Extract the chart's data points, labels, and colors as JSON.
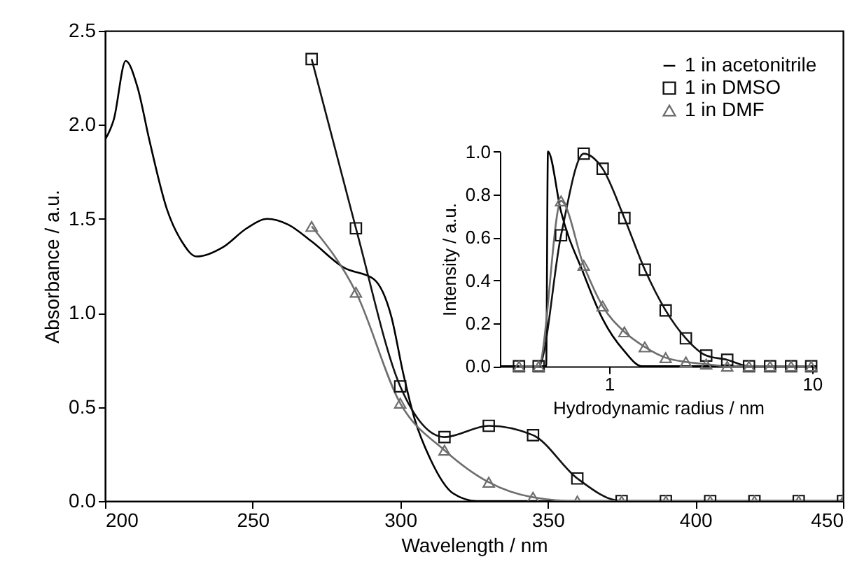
{
  "chart_data": [
    {
      "type": "line",
      "xlabel": "Wavelength / nm",
      "ylabel": "Absorbance / a.u.",
      "xlim": [
        200,
        450
      ],
      "xticks": [
        200,
        250,
        300,
        350,
        400,
        450
      ],
      "ylim": [
        0,
        2.5
      ],
      "yticks": [
        {
          "value": 0,
          "label": "0.0"
        },
        {
          "value": 0.5,
          "label": "0.5"
        },
        {
          "value": 1,
          "label": "1.0"
        },
        {
          "value": 1.5,
          "label": "1.5"
        },
        {
          "value": 2,
          "label": "2.0"
        },
        {
          "value": 2.5,
          "label": "2.5"
        }
      ],
      "legend": "top right",
      "series": [
        {
          "name": "1 in acetonitrile",
          "color": "#000000",
          "marker": "none",
          "x": [
            200,
            203,
            207,
            211,
            215,
            221,
            226,
            231,
            240,
            248,
            255,
            262,
            270,
            281,
            291,
            297,
            301,
            305,
            310,
            318,
            326,
            450
          ],
          "values": [
            1.92,
            2.03,
            2.34,
            2.2,
            1.92,
            1.55,
            1.38,
            1.3,
            1.35,
            1.45,
            1.5,
            1.47,
            1.38,
            1.24,
            1.18,
            0.98,
            0.68,
            0.43,
            0.23,
            0.04,
            0,
            0
          ]
        },
        {
          "name": "1 in DMSO",
          "color": "#111111",
          "marker": "square",
          "x": [
            270,
            285,
            300,
            315,
            330,
            345,
            360,
            375,
            390,
            405,
            420,
            435,
            450
          ],
          "values": [
            2.35,
            1.45,
            0.61,
            0.34,
            0.4,
            0.35,
            0.12,
            0,
            0,
            0,
            0,
            0,
            0
          ]
        },
        {
          "name": "1 in DMF",
          "color": "#6e6e6e",
          "marker": "triangle",
          "x": [
            270,
            285,
            300,
            315,
            330,
            345,
            360,
            375,
            390,
            405,
            420,
            435,
            450
          ],
          "values": [
            1.46,
            1.11,
            0.52,
            0.27,
            0.1,
            0.02,
            0,
            0,
            0,
            0,
            0,
            0,
            0
          ]
        }
      ]
    },
    {
      "type": "line",
      "xlabel": "Hydrodynamic radius / nm",
      "ylabel": "Intensity / a.u.",
      "log": "x",
      "xlim": [
        0.29,
        10.5
      ],
      "xticks": [
        1,
        10
      ],
      "ylim": [
        0,
        1
      ],
      "yticks": [
        {
          "value": 0,
          "label": "0.0"
        },
        {
          "value": 0.2,
          "label": "0.2"
        },
        {
          "value": 0.4,
          "label": "0.4"
        },
        {
          "value": 0.6,
          "label": "0.6"
        },
        {
          "value": 0.8,
          "label": "0.8"
        },
        {
          "value": 1,
          "label": "1.0"
        }
      ],
      "series": [
        {
          "color": "#000000",
          "marker": "none",
          "x": [
            0.29,
            0.49,
            0.5,
            0.58,
            0.75,
            0.93,
            1.19,
            1.45,
            10.5
          ],
          "values": [
            0,
            0,
            1.0,
            0.72,
            0.43,
            0.22,
            0.07,
            0,
            0
          ]
        },
        {
          "color": "#111111",
          "marker": "square",
          "x": [
            0.36,
            0.45,
            0.58,
            0.75,
            0.93,
            1.19,
            1.5,
            1.9,
            2.39,
            3.01,
            3.82,
            4.89,
            6.21,
            7.88,
            9.9
          ],
          "values": [
            0,
            0,
            0.61,
            0.99,
            0.92,
            0.69,
            0.45,
            0.26,
            0.13,
            0.05,
            0.03,
            0,
            0,
            0,
            0
          ]
        },
        {
          "color": "#6e6e6e",
          "marker": "triangle",
          "x": [
            0.36,
            0.45,
            0.58,
            0.75,
            0.93,
            1.19,
            1.5,
            1.9,
            2.39,
            3.01,
            3.82,
            4.89,
            6.21,
            7.88,
            9.9
          ],
          "values": [
            0,
            0,
            0.77,
            0.47,
            0.28,
            0.16,
            0.09,
            0.04,
            0.02,
            0.01,
            0,
            0,
            0,
            0,
            0
          ]
        }
      ]
    }
  ]
}
